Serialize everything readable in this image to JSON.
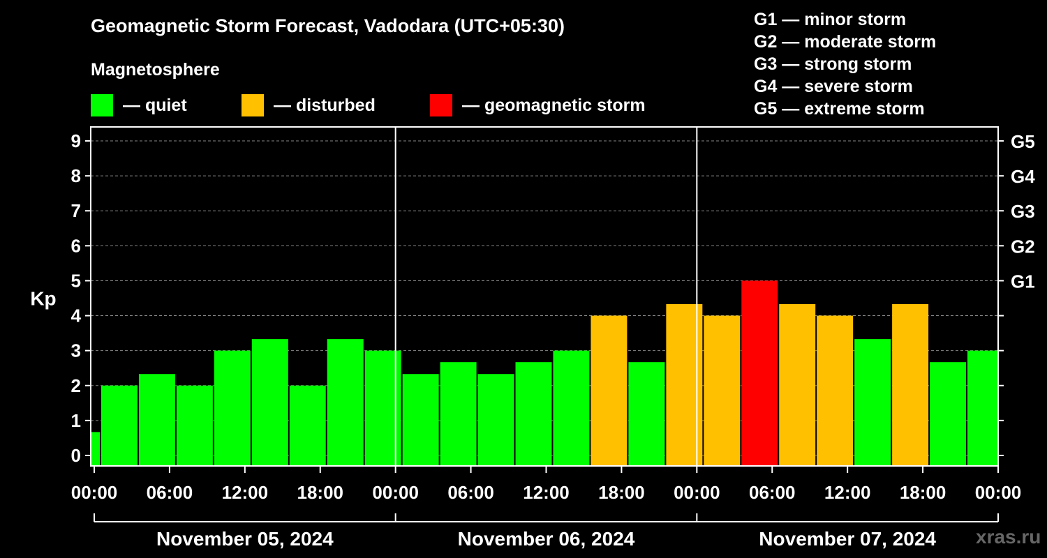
{
  "title": "Geomagnetic Storm Forecast, Vadodara (UTC+05:30)",
  "legend": {
    "heading": "Magnetosphere",
    "items": [
      {
        "label": "— quiet",
        "color": "#00ff00"
      },
      {
        "label": "— disturbed",
        "color": "#ffc000"
      },
      {
        "label": "— geomagnetic storm",
        "color": "#ff0000"
      }
    ]
  },
  "storm_levels": [
    "G1 — minor storm",
    "G2 — moderate storm",
    "G3 — strong storm",
    "G4 — severe storm",
    "G5 — extreme storm"
  ],
  "watermark": "xras.ru",
  "chart_data": {
    "type": "bar",
    "title": "Geomagnetic Storm Forecast, Vadodara (UTC+05:30)",
    "ylabel": "Kp",
    "ylim": [
      -0.3,
      9.4
    ],
    "yticks": [
      0,
      1,
      2,
      3,
      4,
      5,
      6,
      7,
      8,
      9
    ],
    "right_ticks": [
      {
        "value": 5,
        "label": "G1"
      },
      {
        "value": 6,
        "label": "G2"
      },
      {
        "value": 7,
        "label": "G3"
      },
      {
        "value": 8,
        "label": "G4"
      },
      {
        "value": 9,
        "label": "G5"
      }
    ],
    "x_range_hours": [
      0,
      72
    ],
    "xticks": [
      "00:00",
      "06:00",
      "12:00",
      "18:00",
      "00:00",
      "06:00",
      "12:00",
      "18:00",
      "00:00",
      "06:00",
      "12:00",
      "18:00",
      "00:00"
    ],
    "days": [
      "November 05, 2024",
      "November 06, 2024",
      "November 07, 2024"
    ],
    "bar_start_hours": [
      -2.5,
      0.5,
      3.5,
      6.5,
      9.5,
      12.5,
      15.5,
      18.5,
      21.5,
      24.5,
      27.5,
      30.5,
      33.5,
      36.5,
      39.5,
      42.5,
      45.5,
      48.5,
      51.5,
      54.5,
      57.5,
      60.5,
      63.5,
      66.5,
      69.5
    ],
    "bar_width_hours": 3,
    "values": [
      0.67,
      2.0,
      2.33,
      2.0,
      3.0,
      3.33,
      2.0,
      3.33,
      3.0,
      2.33,
      2.67,
      2.33,
      2.67,
      3.0,
      4.0,
      2.67,
      4.33,
      4.0,
      5.0,
      4.33,
      4.0,
      3.33,
      4.33,
      2.67,
      3.0
    ],
    "colors": {
      "quiet": "#00ff00",
      "disturbed": "#ffc000",
      "storm": "#ff0000"
    },
    "thresholds": {
      "disturbed": 4,
      "storm": 5
    },
    "grid": true
  }
}
